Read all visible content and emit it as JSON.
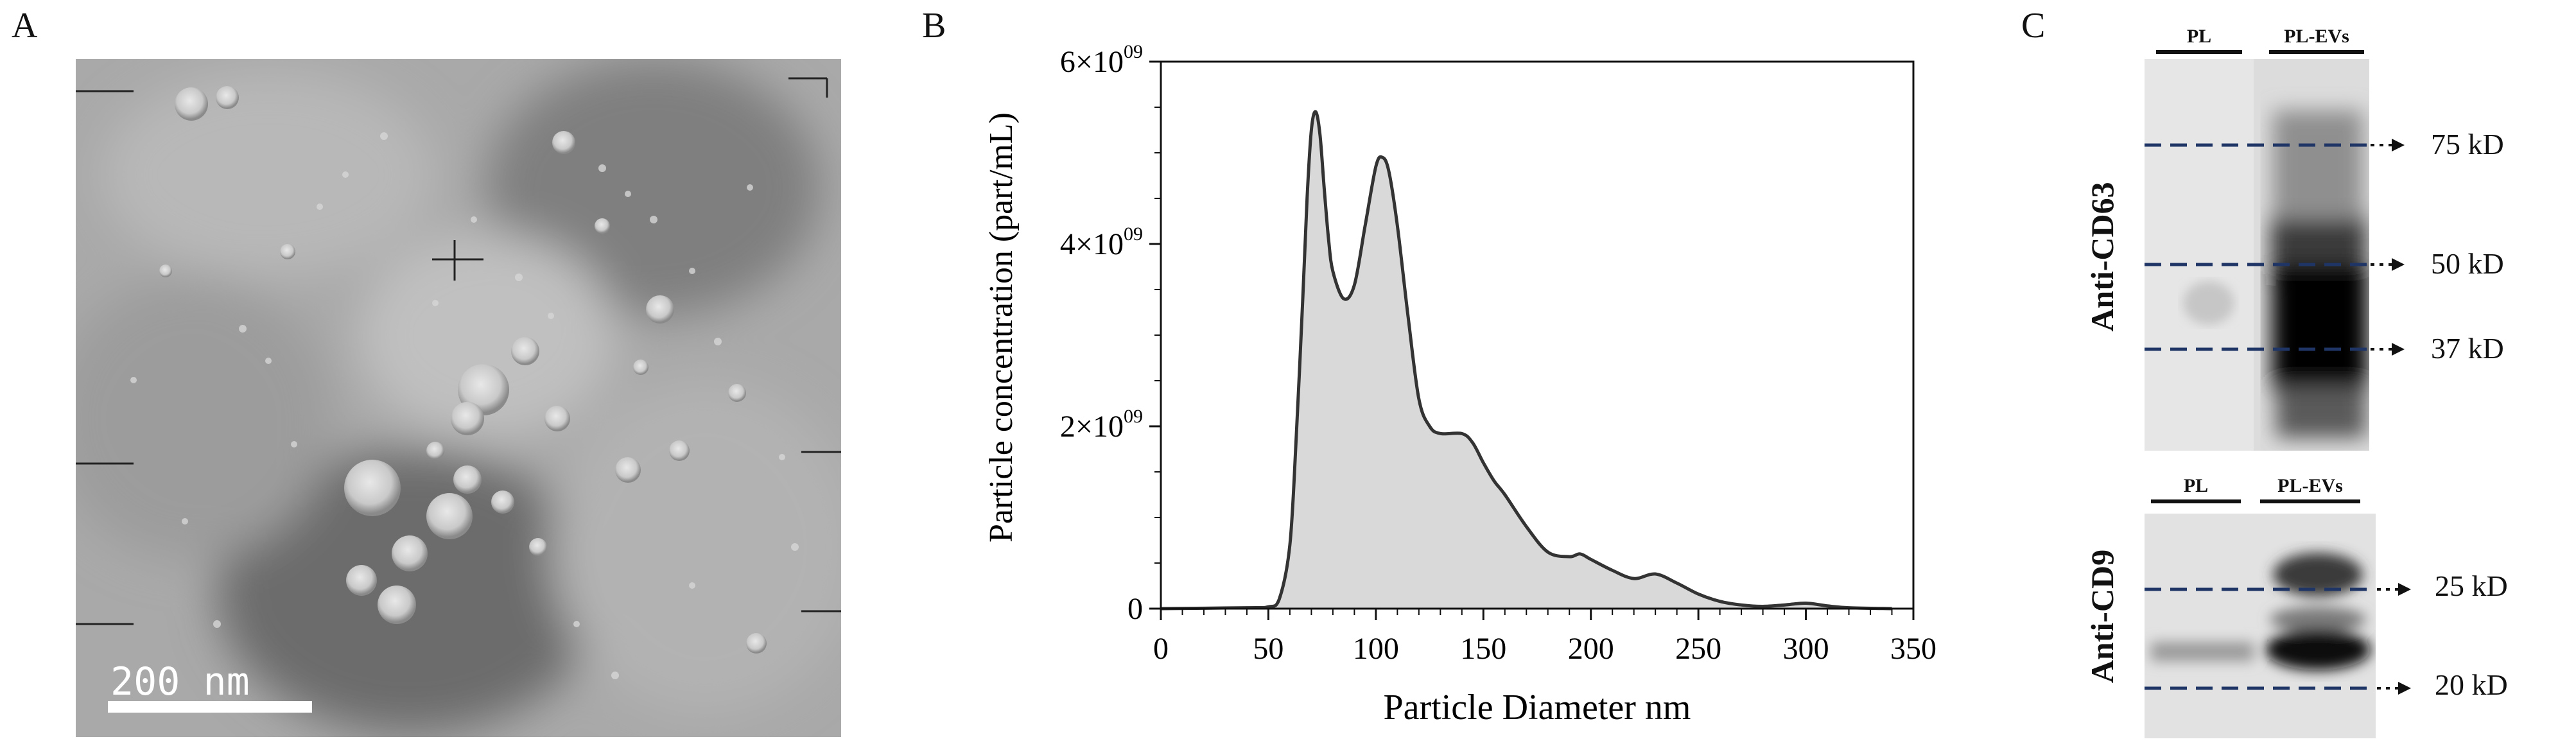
{
  "panels": {
    "a": {
      "letter": "A",
      "scale_bar_label": "200 nm"
    },
    "b": {
      "letter": "B"
    },
    "c": {
      "letter": "C",
      "blot_top": {
        "antibody": "Anti-CD63",
        "lanes": [
          "PL",
          "PL-EVs"
        ],
        "markers": [
          "75 kD",
          "50 kD",
          "37 kD"
        ]
      },
      "blot_bottom": {
        "antibody": "Anti-CD9",
        "lanes": [
          "PL",
          "PL-EVs"
        ],
        "markers": [
          "25 kD",
          "20 kD"
        ]
      }
    }
  },
  "chart_data": {
    "type": "area",
    "xlabel": "Particle Diameter nm",
    "ylabel": "Particle concentration (part/mL)",
    "xlim": [
      0,
      350
    ],
    "ylim": [
      0,
      6000000000
    ],
    "xticks": [
      "0",
      "50",
      "100",
      "150",
      "200",
      "250",
      "300",
      "350"
    ],
    "yticks": [
      {
        "mantissa": "0",
        "exp": ""
      },
      {
        "mantissa": "2×10",
        "exp": "09"
      },
      {
        "mantissa": "4×10",
        "exp": "09"
      },
      {
        "mantissa": "6×10",
        "exp": "09"
      }
    ],
    "fill_color": "#d9d9d9",
    "line_color": "#333333",
    "x": [
      0,
      40,
      50,
      55,
      60,
      63,
      66,
      68,
      70,
      72,
      74,
      76,
      78,
      80,
      85,
      90,
      95,
      100,
      103,
      106,
      110,
      115,
      120,
      125,
      130,
      140,
      145,
      150,
      155,
      160,
      170,
      180,
      190,
      195,
      200,
      210,
      220,
      230,
      240,
      250,
      260,
      270,
      280,
      290,
      300,
      310,
      320,
      340
    ],
    "y": [
      0,
      10000000,
      20000000,
      100000000,
      700000000,
      1900000000,
      3400000000,
      4500000000,
      5250000000,
      5450000000,
      5200000000,
      4600000000,
      4050000000,
      3700000000,
      3400000000,
      3550000000,
      4200000000,
      4850000000,
      4950000000,
      4800000000,
      4200000000,
      3200000000,
      2300000000,
      2000000000,
      1920000000,
      1920000000,
      1820000000,
      1600000000,
      1400000000,
      1250000000,
      900000000,
      620000000,
      570000000,
      600000000,
      540000000,
      420000000,
      330000000,
      380000000,
      280000000,
      160000000,
      80000000,
      40000000,
      25000000,
      40000000,
      60000000,
      30000000,
      10000000,
      0
    ]
  }
}
